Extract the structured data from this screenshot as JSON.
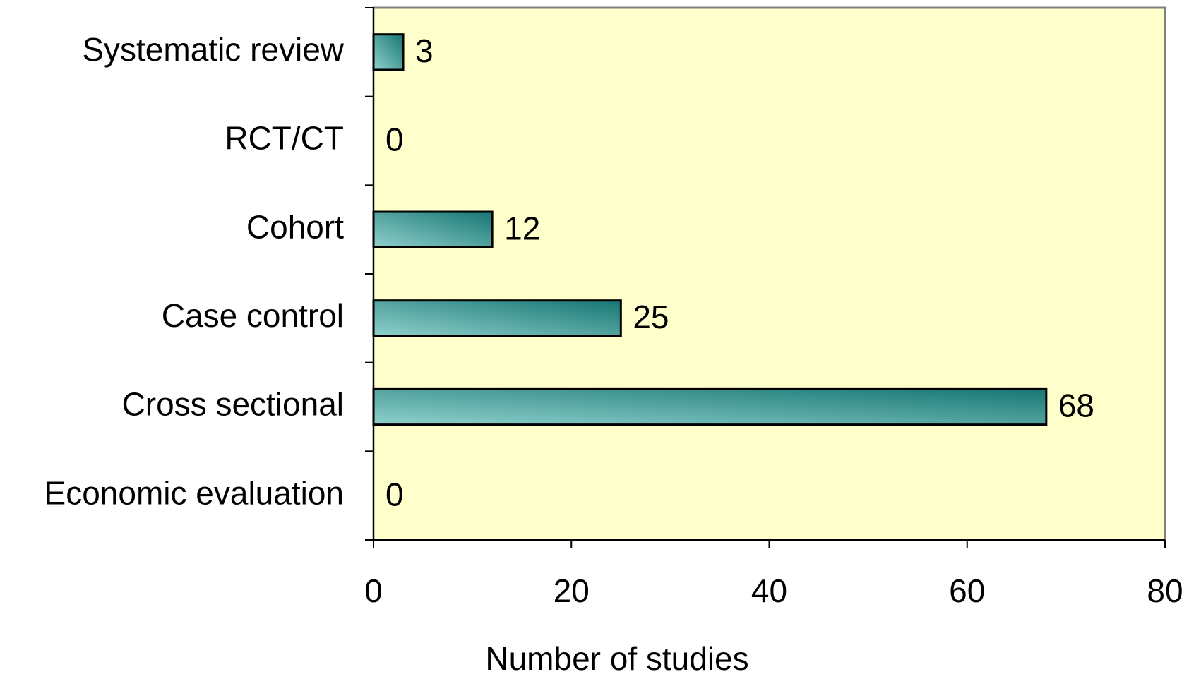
{
  "chart_data": {
    "type": "bar",
    "orientation": "horizontal",
    "x_label": "Number of studies",
    "categories": [
      "Systematic review",
      "RCT/CT",
      "Cohort",
      "Case control",
      "Cross sectional",
      "Economic evaluation"
    ],
    "values": [
      3,
      0,
      12,
      25,
      68,
      0
    ],
    "color": "#167673",
    "background": "#ffffcc",
    "xlim": [
      0,
      80
    ],
    "xticks": [
      0,
      20,
      40,
      60,
      80
    ],
    "grid": false
  }
}
